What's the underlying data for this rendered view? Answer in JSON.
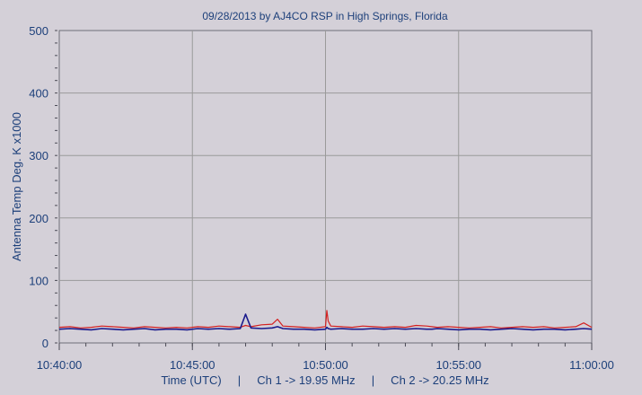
{
  "chart_data": {
    "type": "line",
    "title": "09/28/2013  by  AJ4CO RSP  in  High Springs, Florida",
    "xlabel": "Time (UTC)     |     Ch 1 -> 19.95 MHz     |     Ch 2 -> 20.25 MHz",
    "ylabel": "Antenna Temp Deg. K x1000",
    "x_ticks": [
      "10:40:00",
      "10:45:00",
      "10:50:00",
      "10:55:00",
      "11:00:00"
    ],
    "y_ticks": [
      "0",
      "100",
      "200",
      "300",
      "400",
      "500"
    ],
    "x_range_minutes": [
      0,
      20
    ],
    "ylim": [
      0,
      500
    ],
    "grid": true,
    "colors": {
      "ch1": "#d42020",
      "ch2": "#1a1a8c",
      "text": "#1c3f7a",
      "grid": "#9a9a9a",
      "plot_bg": "#d4d0d8"
    },
    "series": [
      {
        "name": "Ch 1 -> 19.95 MHz",
        "color": "#d42020",
        "x": [
          0,
          0.4,
          0.8,
          1.2,
          1.6,
          2,
          2.4,
          2.8,
          3.2,
          3.6,
          4,
          4.4,
          4.8,
          5.2,
          5.6,
          6,
          6.4,
          6.8,
          7,
          7.2,
          7.6,
          8,
          8.2,
          8.4,
          8.8,
          9.2,
          9.6,
          10,
          10.05,
          10.1,
          10.2,
          10.6,
          11,
          11.4,
          11.8,
          12.2,
          12.6,
          13,
          13.4,
          13.8,
          14,
          14.2,
          14.6,
          15,
          15.4,
          15.8,
          16.2,
          16.6,
          17,
          17.4,
          17.8,
          18.2,
          18.6,
          19,
          19.4,
          19.7,
          20
        ],
        "y": [
          25,
          26,
          24,
          25,
          27,
          26,
          25,
          24,
          26,
          25,
          24,
          25,
          24,
          26,
          25,
          27,
          26,
          25,
          28,
          26,
          29,
          30,
          38,
          27,
          26,
          25,
          24,
          26,
          52,
          35,
          27,
          26,
          25,
          27,
          26,
          25,
          26,
          25,
          28,
          27,
          26,
          25,
          26,
          25,
          24,
          25,
          26,
          24,
          25,
          26,
          25,
          26,
          24,
          25,
          26,
          32,
          25
        ]
      },
      {
        "name": "Ch 2 -> 20.25 MHz",
        "color": "#1a1a8c",
        "x": [
          0,
          0.4,
          0.8,
          1.2,
          1.6,
          2,
          2.4,
          2.8,
          3.2,
          3.6,
          4,
          4.4,
          4.8,
          5.2,
          5.6,
          6,
          6.4,
          6.8,
          7,
          7.2,
          7.6,
          8,
          8.2,
          8.4,
          8.8,
          9.2,
          9.6,
          10,
          10.05,
          10.1,
          10.2,
          10.6,
          11,
          11.4,
          11.8,
          12.2,
          12.6,
          13,
          13.4,
          13.8,
          14,
          14.2,
          14.6,
          15,
          15.4,
          15.8,
          16.2,
          16.6,
          17,
          17.4,
          17.8,
          18.2,
          18.6,
          19,
          19.4,
          19.7,
          20
        ],
        "y": [
          22,
          23,
          22,
          21,
          23,
          22,
          21,
          22,
          23,
          21,
          22,
          22,
          21,
          23,
          22,
          23,
          22,
          23,
          46,
          24,
          23,
          24,
          26,
          23,
          22,
          22,
          21,
          22,
          25,
          23,
          22,
          23,
          22,
          22,
          23,
          22,
          23,
          22,
          23,
          22,
          22,
          23,
          22,
          21,
          22,
          22,
          21,
          22,
          23,
          22,
          21,
          22,
          22,
          21,
          22,
          23,
          22
        ]
      }
    ]
  }
}
